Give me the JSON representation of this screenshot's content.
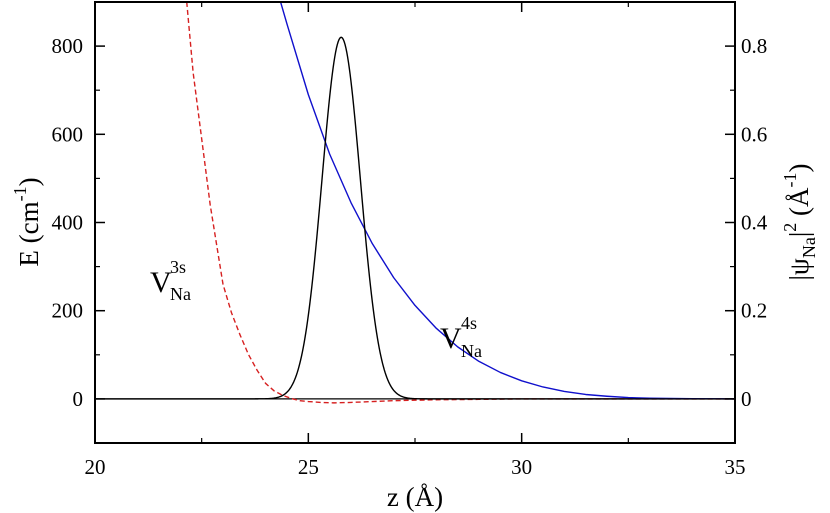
{
  "chart_data": {
    "type": "line",
    "x_axis": {
      "label": "z (Å)",
      "range": [
        20,
        35
      ],
      "ticks": [
        20,
        25,
        30,
        35
      ],
      "tick_labels": [
        "20",
        "25",
        "30",
        "35"
      ]
    },
    "y_axis_left": {
      "label_main": "E (cm",
      "label_sup": "-1",
      "label_close": ")",
      "range": [
        -100,
        900
      ],
      "ticks": [
        0,
        200,
        400,
        600,
        800
      ],
      "tick_labels": [
        "0",
        "200",
        "400",
        "600",
        "800"
      ]
    },
    "y_axis_right": {
      "label_open": "|ψ",
      "label_sub": "Na",
      "label_abs_close": "|",
      "label_sup": "2",
      "label_unit_open": " (Å",
      "label_unit_sup": "-1",
      "label_unit_close": ")",
      "range": [
        -0.1,
        0.9
      ],
      "ticks": [
        0,
        0.2,
        0.4,
        0.6,
        0.8
      ],
      "tick_labels": [
        "0",
        "0.2",
        "0.4",
        "0.6",
        "0.8"
      ]
    },
    "annotations": {
      "v3s": {
        "main": "V",
        "sup": "3s",
        "sub": "Na"
      },
      "v4s": {
        "main": "V",
        "sup": "4s",
        "sub": "Na"
      }
    },
    "series": [
      {
        "id": "v3s",
        "axis": "left",
        "color": "#d62020",
        "dash": "dashed",
        "x": [
          22.15,
          22.3,
          22.5,
          22.7,
          22.9,
          23.0,
          23.2,
          23.4,
          23.6,
          23.8,
          24.0,
          24.2,
          24.4,
          24.6,
          24.8,
          25.0,
          25.3,
          25.6,
          26.0,
          26.5,
          27.0,
          27.5,
          28.0,
          29.0,
          30.0,
          31.0,
          33.0,
          35.0
        ],
        "values": [
          900,
          740,
          590,
          440,
          320,
          260,
          195,
          145,
          100,
          65,
          35,
          18,
          8,
          1,
          -4,
          -6,
          -8,
          -9,
          -8,
          -6,
          -4,
          -3,
          -2,
          -1,
          0,
          0,
          0,
          0
        ]
      },
      {
        "id": "v4s",
        "axis": "left",
        "color": "#1010cc",
        "dash": "solid",
        "x": [
          24.35,
          24.5,
          25.0,
          25.5,
          26.0,
          26.5,
          27.0,
          27.5,
          28.0,
          28.5,
          29.0,
          29.5,
          30.0,
          30.5,
          31.0,
          31.5,
          32.0,
          32.5,
          33.0,
          34.0,
          35.0
        ],
        "values": [
          900,
          850,
          690,
          555,
          445,
          352,
          275,
          212,
          160,
          118,
          85,
          60,
          41,
          27,
          17,
          10,
          6,
          3,
          1.5,
          0.5,
          0
        ]
      },
      {
        "id": "psi",
        "axis": "right",
        "color": "#000000",
        "dash": "solid",
        "peak": {
          "center": 25.77,
          "amplitude": 0.82,
          "sigma": 0.45
        }
      }
    ],
    "zero_line": {
      "color": "#000000"
    }
  }
}
